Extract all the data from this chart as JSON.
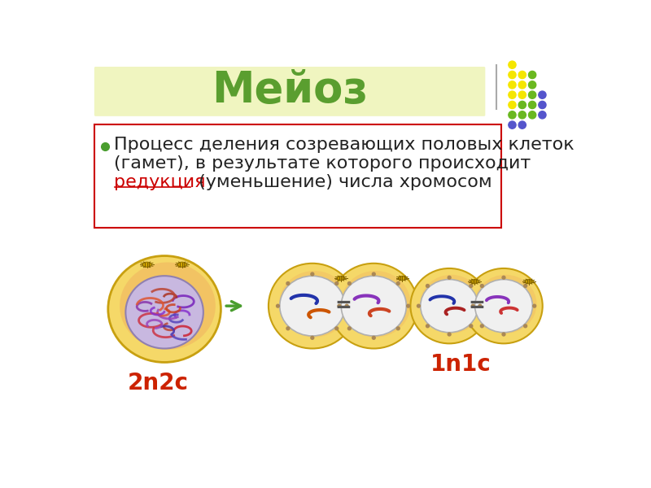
{
  "title": "Мейоз",
  "title_color": "#5a9e2f",
  "title_bg_color": "#f0f5c0",
  "title_fontsize": 38,
  "bg_color": "#ffffff",
  "text_line1": "Процесс деления созревающих половых клеток",
  "text_line2": "(гамет), в результате которого происходит",
  "text_line3_part1": " (уменьшение) числа хромосом",
  "text_red": "редукция",
  "text_fontsize": 16,
  "bullet_color": "#4a9e2f",
  "text_box_border": "#cc0000",
  "label_2n2c": "2n2c",
  "label_1n1c": "1n1c",
  "label_color": "#cc2200",
  "label_fontsize": 20,
  "dot_colors_yellow": "#f5e600",
  "dot_colors_green": "#6ab820",
  "dot_colors_blue": "#5555cc",
  "arrow_color": "#4a9e2f",
  "dot_pattern": [
    [
      0,
      0,
      "yellow"
    ],
    [
      0,
      1,
      "yellow"
    ],
    [
      1,
      1,
      "yellow"
    ],
    [
      2,
      1,
      "green"
    ],
    [
      0,
      2,
      "yellow"
    ],
    [
      1,
      2,
      "yellow"
    ],
    [
      2,
      2,
      "green"
    ],
    [
      0,
      3,
      "yellow"
    ],
    [
      1,
      3,
      "yellow"
    ],
    [
      2,
      3,
      "green"
    ],
    [
      3,
      3,
      "blue"
    ],
    [
      0,
      4,
      "yellow"
    ],
    [
      1,
      4,
      "green"
    ],
    [
      2,
      4,
      "green"
    ],
    [
      3,
      4,
      "blue"
    ],
    [
      0,
      5,
      "green"
    ],
    [
      1,
      5,
      "green"
    ],
    [
      2,
      5,
      "green"
    ],
    [
      3,
      5,
      "blue"
    ],
    [
      0,
      6,
      "blue"
    ],
    [
      1,
      6,
      "blue"
    ]
  ]
}
